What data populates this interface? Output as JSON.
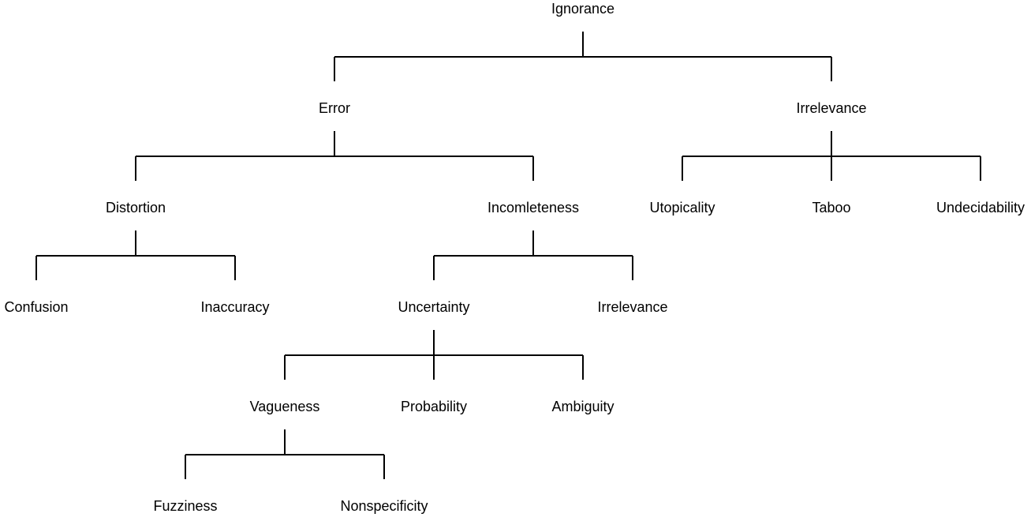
{
  "diagram": {
    "type": "hierarchy-tree",
    "root": {
      "id": "ignorance",
      "label": "Ignorance",
      "children": [
        {
          "id": "error",
          "label": "Error",
          "children": [
            {
              "id": "distortion",
              "label": "Distortion",
              "children": [
                {
                  "id": "confusion",
                  "label": "Confusion"
                },
                {
                  "id": "inaccuracy",
                  "label": "Inaccuracy"
                }
              ]
            },
            {
              "id": "incompleteness",
              "label": "Incomleteness",
              "children": [
                {
                  "id": "uncertainty",
                  "label": "Uncertainty",
                  "children": [
                    {
                      "id": "vagueness",
                      "label": "Vagueness",
                      "children": [
                        {
                          "id": "fuzziness",
                          "label": "Fuzziness"
                        },
                        {
                          "id": "nonspecificity",
                          "label": "Nonspecificity"
                        }
                      ]
                    },
                    {
                      "id": "probability",
                      "label": "Probability"
                    },
                    {
                      "id": "ambiguity",
                      "label": "Ambiguity"
                    }
                  ]
                },
                {
                  "id": "incompleteness-irrelevance",
                  "label": "Irrelevance"
                }
              ]
            }
          ]
        },
        {
          "id": "irrelevance",
          "label": "Irrelevance",
          "children": [
            {
              "id": "utopicality",
              "label": "Utopicality"
            },
            {
              "id": "taboo",
              "label": "Taboo"
            },
            {
              "id": "undecidability",
              "label": "Undecidability"
            }
          ]
        }
      ]
    }
  }
}
